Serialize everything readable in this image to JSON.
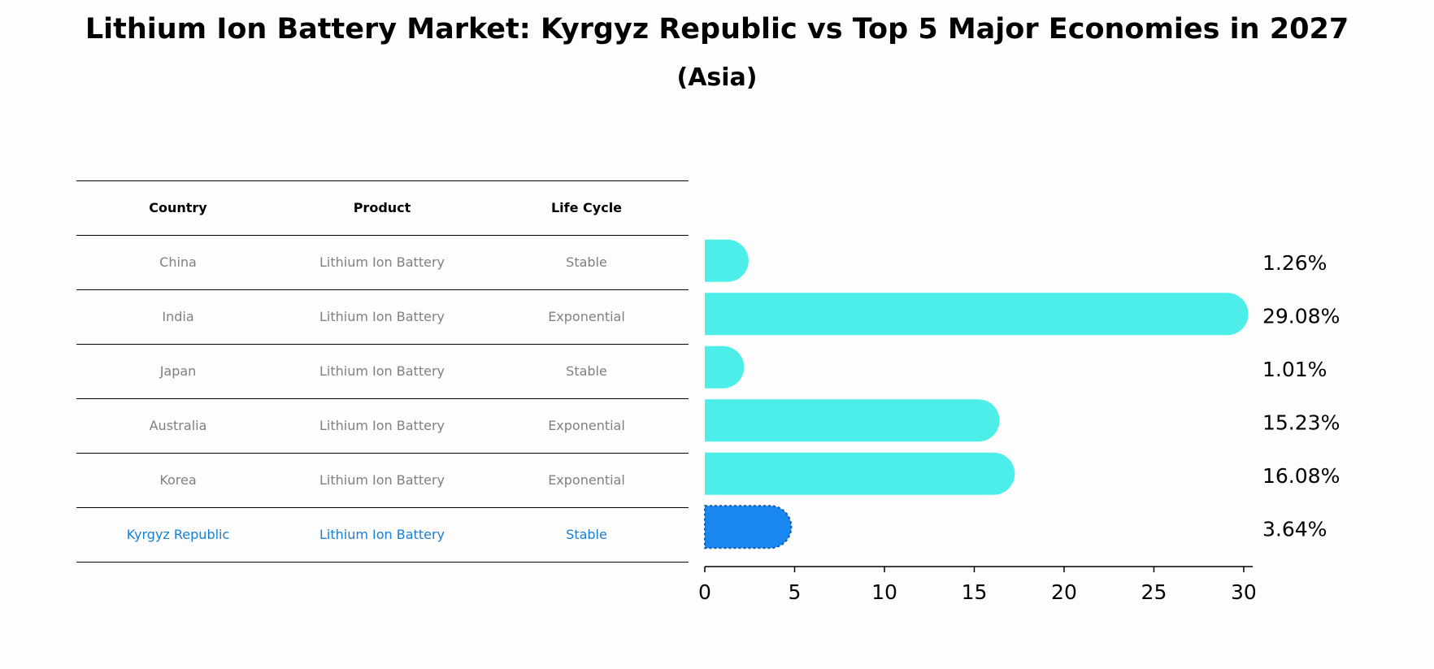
{
  "title": "Lithium Ion Battery Market: Kyrgyz Republic vs Top 5 Major Economies in 2027",
  "subtitle": "(Asia)",
  "table": {
    "headers": {
      "country": "Country",
      "product": "Product",
      "life_cycle": "Life Cycle"
    },
    "rows": [
      {
        "country": "China",
        "product": "Lithium Ion Battery",
        "life_cycle": "Stable"
      },
      {
        "country": "India",
        "product": "Lithium Ion Battery",
        "life_cycle": "Exponential"
      },
      {
        "country": "Japan",
        "product": "Lithium Ion Battery",
        "life_cycle": "Stable"
      },
      {
        "country": "Australia",
        "product": "Lithium Ion Battery",
        "life_cycle": "Exponential"
      },
      {
        "country": "Korea",
        "product": "Lithium Ion Battery",
        "life_cycle": "Exponential"
      },
      {
        "country": "Kyrgyz Republic",
        "product": "Lithium Ion Battery",
        "life_cycle": "Stable"
      }
    ]
  },
  "chart_data": {
    "type": "bar",
    "orientation": "horizontal",
    "categories": [
      "China",
      "India",
      "Japan",
      "Australia",
      "Korea",
      "Kyrgyz Republic"
    ],
    "values": [
      1.26,
      29.08,
      1.01,
      15.23,
      16.08,
      3.64
    ],
    "value_labels": [
      "1.26%",
      "29.08%",
      "1.01%",
      "15.23%",
      "16.08%",
      "3.64%"
    ],
    "highlight": "Kyrgyz Republic",
    "xlim": [
      0,
      30.5
    ],
    "xticks": [
      0,
      5,
      10,
      15,
      20,
      25,
      30
    ],
    "xtick_labels": [
      "0",
      "5",
      "10",
      "15",
      "20",
      "25",
      "30"
    ],
    "colors": {
      "default": "#4deeea",
      "highlight": "#1a86f0"
    },
    "grid": false
  }
}
